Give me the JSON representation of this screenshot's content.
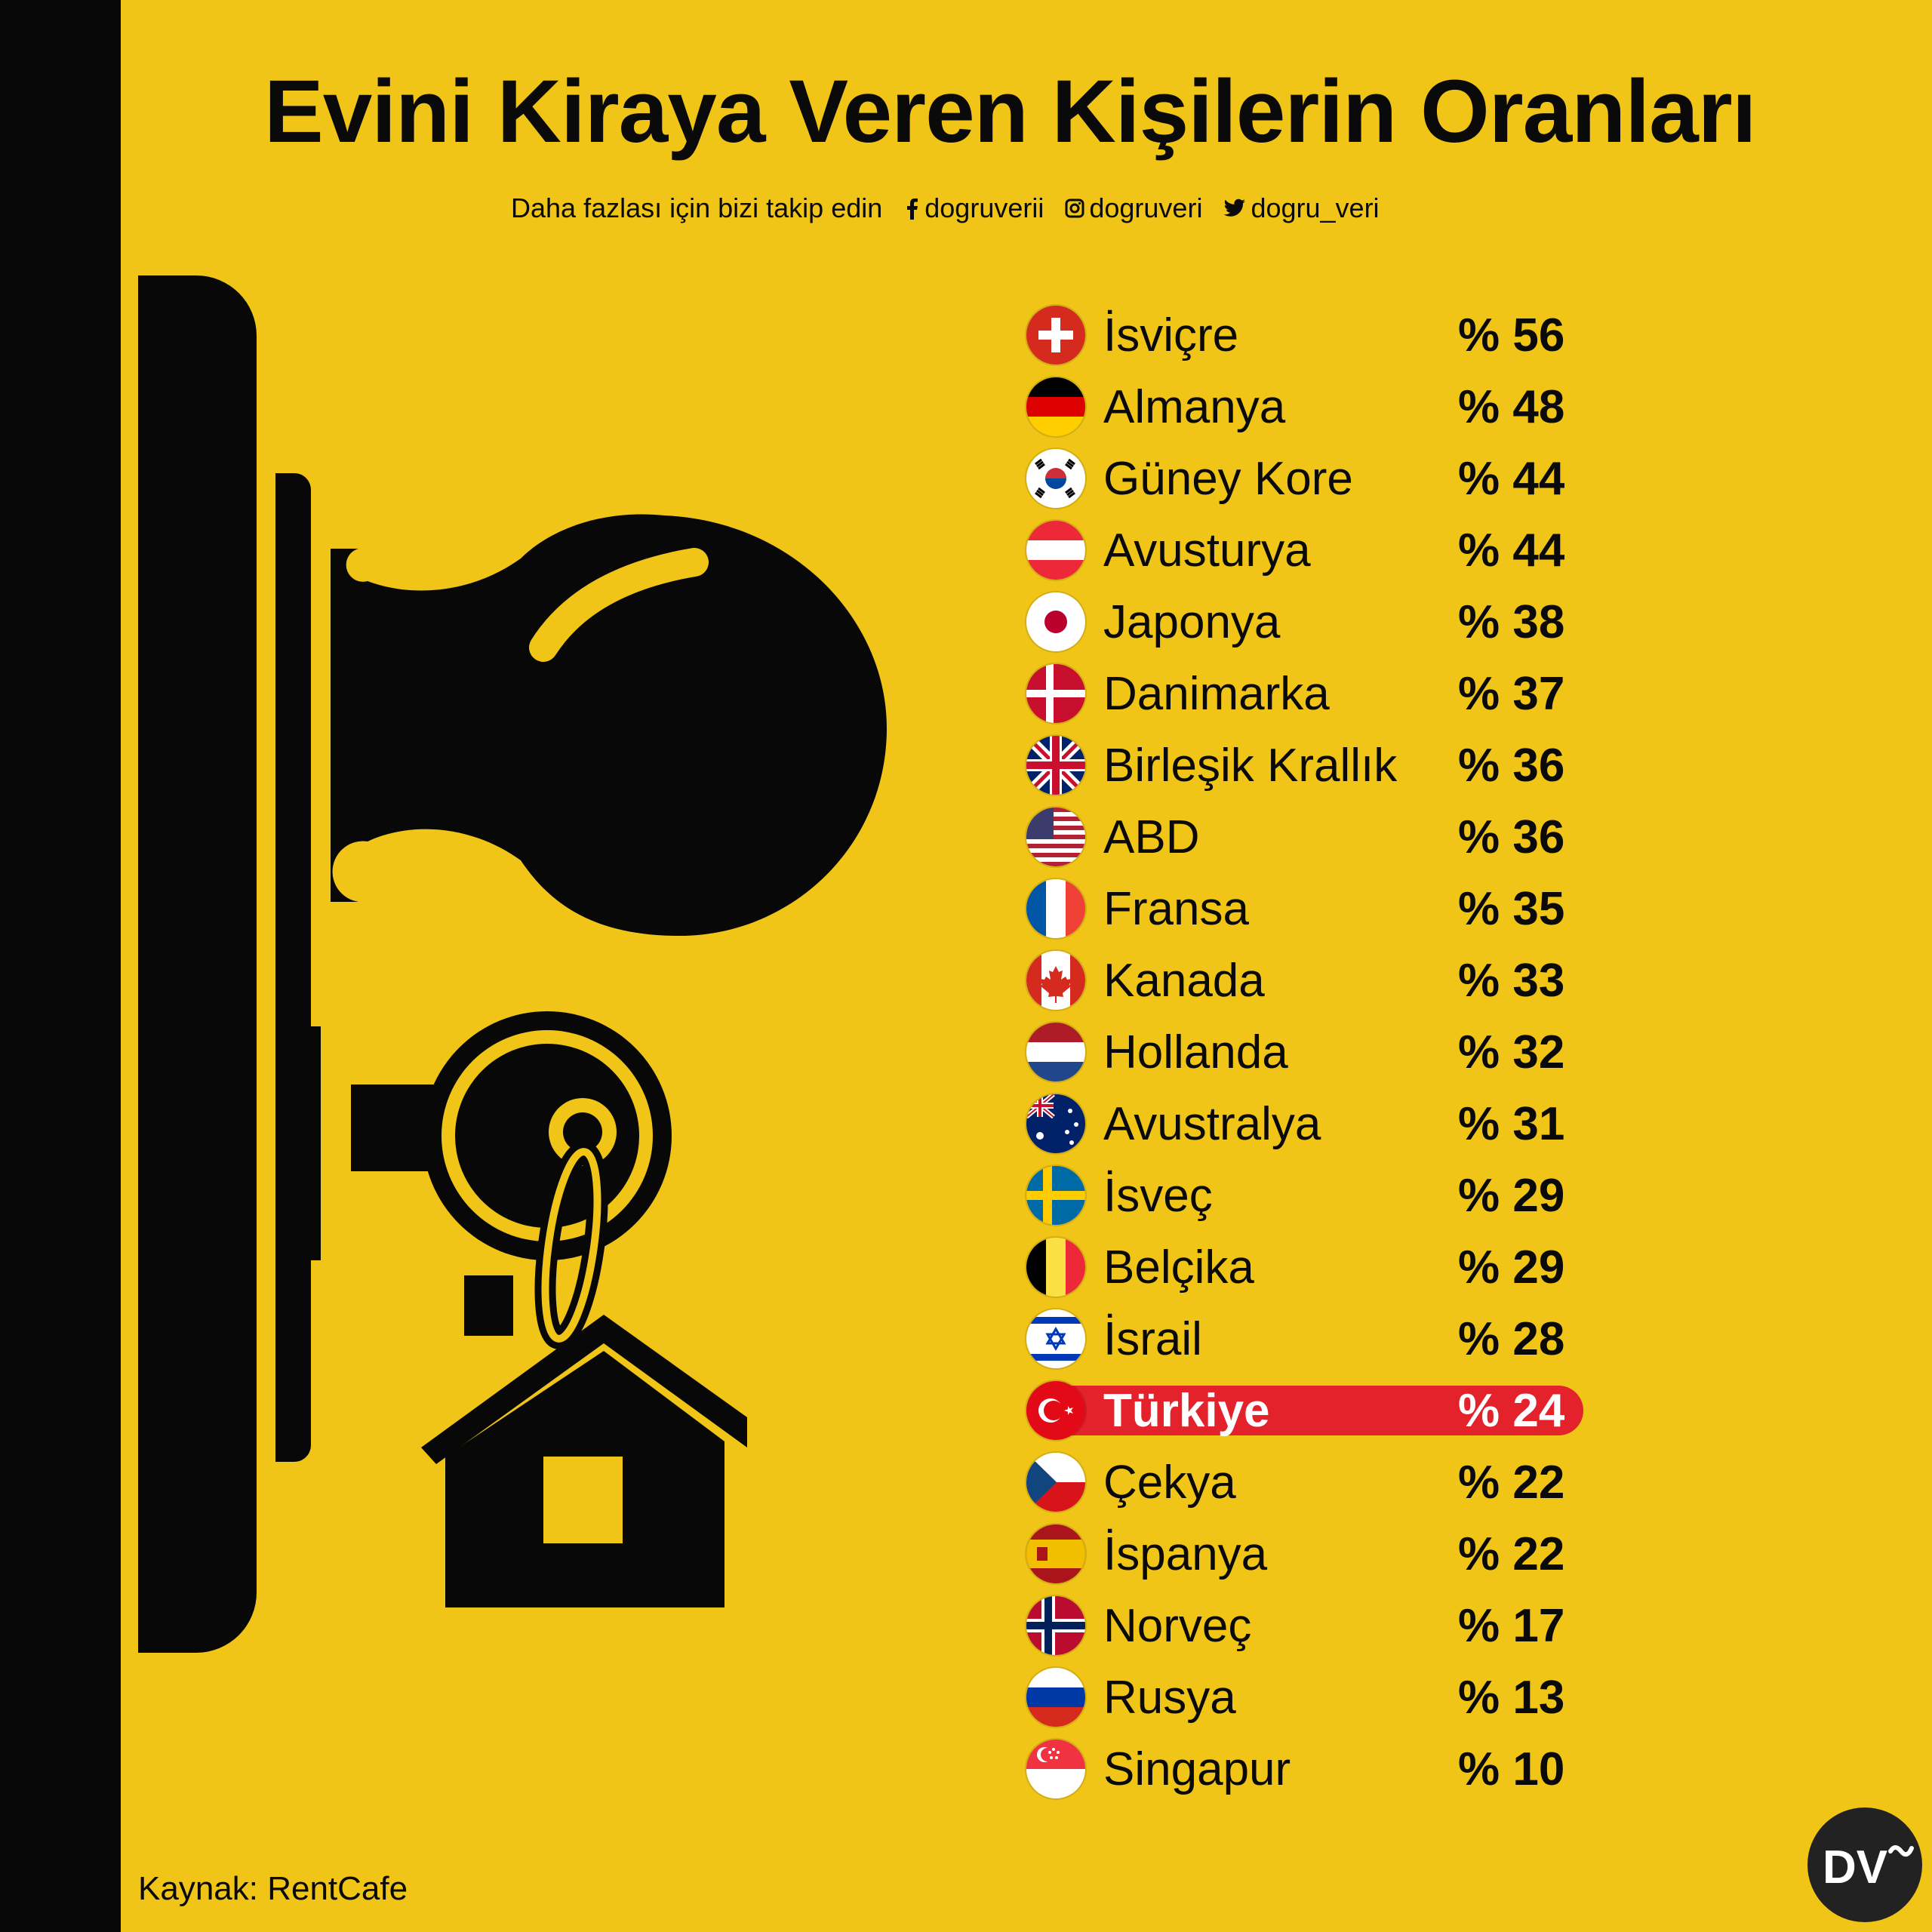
{
  "title": "Evini Kiraya Veren Kişilerin Oranları",
  "social": {
    "prompt": "Daha fazlası için bizi takip edin",
    "facebook": "dogruverii",
    "instagram": "dogruveri",
    "twitter": "dogru_veri"
  },
  "rows": [
    {
      "country": "İsviçre",
      "value": "% 56",
      "flag": "switzerland"
    },
    {
      "country": "Almanya",
      "value": "% 48",
      "flag": "germany"
    },
    {
      "country": "Güney Kore",
      "value": "% 44",
      "flag": "south-korea"
    },
    {
      "country": "Avusturya",
      "value": "% 44",
      "flag": "austria"
    },
    {
      "country": "Japonya",
      "value": "% 38",
      "flag": "japan"
    },
    {
      "country": "Danimarka",
      "value": "% 37",
      "flag": "denmark"
    },
    {
      "country": "Birleşik Krallık",
      "value": "% 36",
      "flag": "united-kingdom"
    },
    {
      "country": "ABD",
      "value": "% 36",
      "flag": "usa"
    },
    {
      "country": "Fransa",
      "value": "% 35",
      "flag": "france"
    },
    {
      "country": "Kanada",
      "value": "% 33",
      "flag": "canada"
    },
    {
      "country": "Hollanda",
      "value": "% 32",
      "flag": "netherlands"
    },
    {
      "country": "Avustralya",
      "value": "% 31",
      "flag": "australia"
    },
    {
      "country": "İsveç",
      "value": "% 29",
      "flag": "sweden"
    },
    {
      "country": "Belçika",
      "value": "% 29",
      "flag": "belgium"
    },
    {
      "country": "İsrail",
      "value": "% 28",
      "flag": "israel"
    },
    {
      "country": "Türkiye",
      "value": "% 24",
      "flag": "turkey",
      "highlight": true
    },
    {
      "country": "Çekya",
      "value": "% 22",
      "flag": "czechia"
    },
    {
      "country": "İspanya",
      "value": "% 22",
      "flag": "spain"
    },
    {
      "country": "Norveç",
      "value": "% 17",
      "flag": "norway"
    },
    {
      "country": "Rusya",
      "value": "% 13",
      "flag": "russia"
    },
    {
      "country": "Singapur",
      "value": "% 10",
      "flag": "singapore"
    }
  ],
  "source": "Kaynak: RentCafe",
  "logo_text": "DV",
  "colors": {
    "background": "#F0C517",
    "ink": "#080808",
    "highlight": "#E3222C"
  }
}
